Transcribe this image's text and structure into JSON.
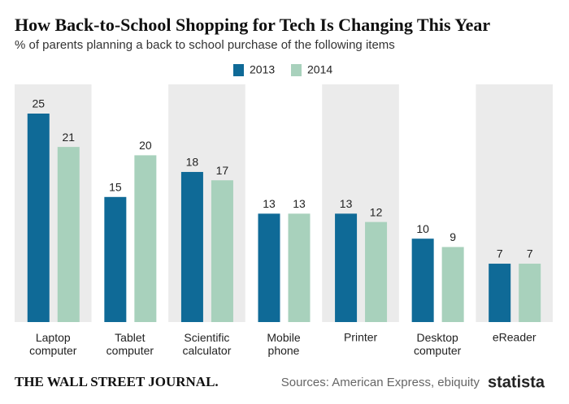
{
  "chart_data": {
    "type": "bar",
    "title": "How Back-to-School Shopping for Tech Is Changing This Year",
    "subtitle": "% of parents planning a back to school purchase of the following items",
    "categories": [
      "Laptop computer",
      "Tablet computer",
      "Scientific calculator",
      "Mobile phone",
      "Printer",
      "Desktop computer",
      "eReader"
    ],
    "series": [
      {
        "name": "2013",
        "color": "#0f6a97",
        "values": [
          25,
          15,
          18,
          13,
          13,
          10,
          7
        ]
      },
      {
        "name": "2014",
        "color": "#a8d1bc",
        "values": [
          21,
          20,
          17,
          13,
          12,
          9,
          7
        ]
      }
    ],
    "footer": {
      "publisher": "THE WALL STREET JOURNAL.",
      "source": "Sources: American Express, ebiquity",
      "brand": "statista"
    }
  }
}
